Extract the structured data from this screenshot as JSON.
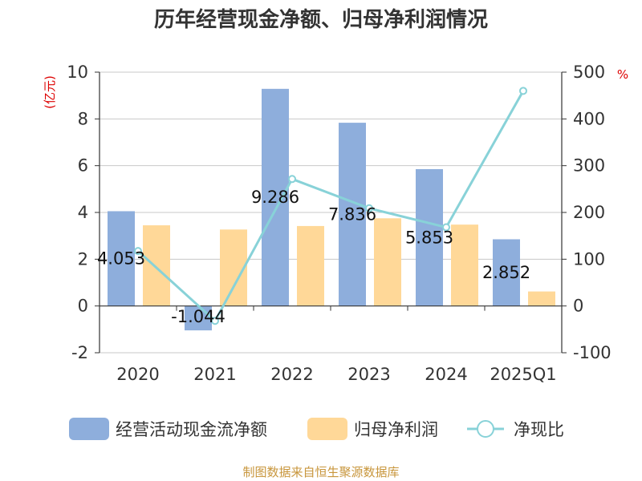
{
  "chart_data": {
    "type": "bar",
    "title": "历年经营现金净额、归母净利润情况",
    "categories": [
      "2020",
      "2021",
      "2022",
      "2023",
      "2024",
      "2025Q1"
    ],
    "series": [
      {
        "name": "经营活动现金流净额",
        "kind": "bar",
        "axis": "left",
        "color": "#8eaedc",
        "values": [
          4.053,
          -1.044,
          9.286,
          7.836,
          5.853,
          2.852
        ]
      },
      {
        "name": "归母净利润",
        "kind": "bar",
        "axis": "left",
        "color": "#ffd898",
        "values": [
          3.45,
          3.27,
          3.42,
          3.75,
          3.48,
          0.62
        ]
      },
      {
        "name": "净现比",
        "kind": "line",
        "axis": "right",
        "color": "#88d2d8",
        "values": [
          117.5,
          -31.9,
          271.5,
          208.9,
          168.2,
          460.0
        ]
      }
    ],
    "bar_labels": [
      "4.053",
      "-1.044",
      "9.286",
      "7.836",
      "5.853",
      "2.852"
    ],
    "left_axis": {
      "unit": "(亿元)",
      "range": [
        -2,
        10
      ],
      "ticks": [
        "10",
        "8",
        "6",
        "4",
        "2",
        "0",
        "-2"
      ]
    },
    "right_axis": {
      "unit": "%",
      "range": [
        -100,
        500
      ],
      "ticks": [
        "500",
        "400",
        "300",
        "200",
        "100",
        "0",
        "-100"
      ]
    },
    "legend_position": "bottom",
    "gridlines": true,
    "source": "制图数据来自恒生聚源数据库"
  }
}
